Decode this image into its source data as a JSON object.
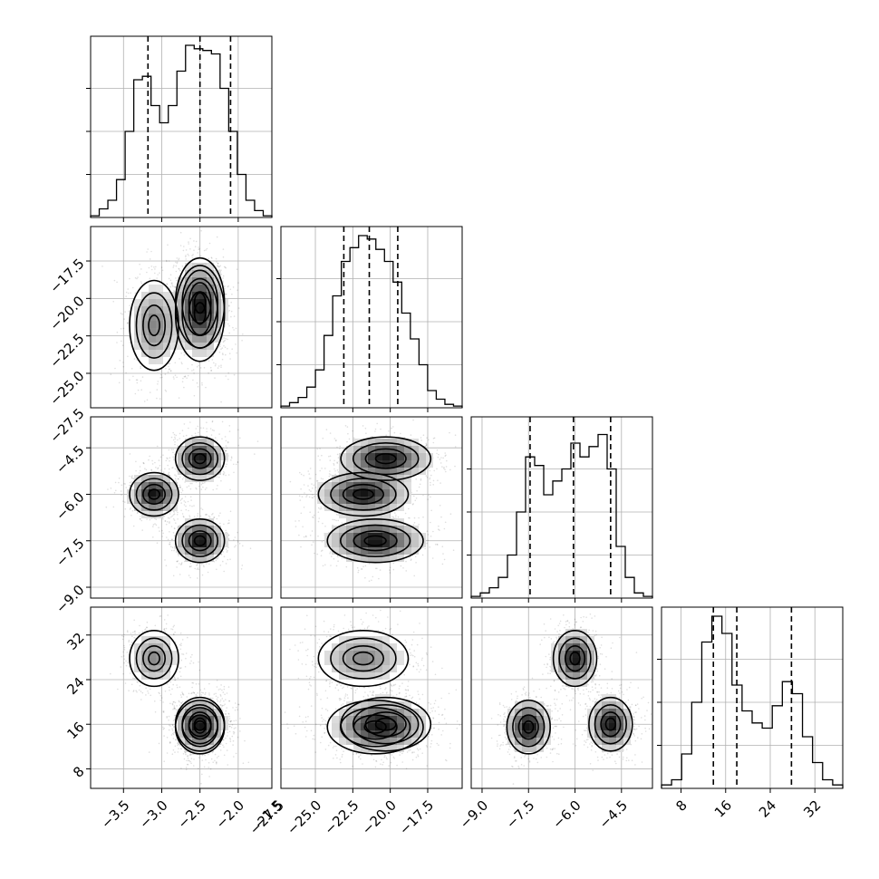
{
  "chart_data": {
    "type": "corner",
    "grid": true,
    "parameters": [
      {
        "ticks": [
          -3.5,
          -3.0,
          -2.5,
          -2.0,
          -1.5
        ],
        "range": [
          -3.93,
          -1.56
        ]
      },
      {
        "ticks": [
          -27.5,
          -25.0,
          -22.5,
          -20.0,
          -17.5
        ],
        "range": [
          -27.3,
          -15.2
        ]
      },
      {
        "ticks": [
          -9.0,
          -7.5,
          -6.0,
          -4.5
        ],
        "range": [
          -9.35,
          -3.5
        ]
      },
      {
        "ticks": [
          8,
          16,
          24,
          32
        ],
        "range": [
          4.5,
          37.0
        ]
      }
    ],
    "tick_labels": {
      "p0": [
        "−3.5",
        "−3.0",
        "−2.5",
        "−2.0",
        "−1.5"
      ],
      "p1": [
        "−27.5",
        "−25.0",
        "−22.5",
        "−20.0",
        "−17.5"
      ],
      "p2": [
        "−9.0",
        "−7.5",
        "−6.0",
        "−4.5"
      ],
      "p3": [
        "8",
        "16",
        "24",
        "32"
      ]
    },
    "quantiles": [
      [
        -3.18,
        -2.5,
        -2.1
      ],
      [
        -23.1,
        -21.4,
        -19.5
      ],
      [
        -7.45,
        -6.05,
        -4.85
      ],
      [
        13.8,
        18.0,
        27.8
      ]
    ],
    "histograms": [
      {
        "bin_start": -3.93,
        "bin_end": -1.56,
        "counts": [
          0.01,
          0.05,
          0.1,
          0.22,
          0.5,
          0.8,
          0.82,
          0.65,
          0.55,
          0.65,
          0.85,
          1.0,
          0.98,
          0.97,
          0.95,
          0.75,
          0.5,
          0.25,
          0.1,
          0.04,
          0.01
        ]
      },
      {
        "bin_start": -27.3,
        "bin_end": -15.2,
        "counts": [
          0.01,
          0.03,
          0.06,
          0.12,
          0.22,
          0.42,
          0.65,
          0.85,
          0.93,
          1.0,
          0.98,
          0.92,
          0.85,
          0.73,
          0.55,
          0.4,
          0.25,
          0.1,
          0.05,
          0.02,
          0.01
        ]
      },
      {
        "bin_start": -9.35,
        "bin_end": -3.5,
        "counts": [
          0.01,
          0.03,
          0.06,
          0.12,
          0.25,
          0.5,
          0.82,
          0.77,
          0.6,
          0.68,
          0.75,
          0.9,
          0.82,
          0.88,
          0.95,
          0.75,
          0.3,
          0.12,
          0.03,
          0.01
        ]
      },
      {
        "bin_start": 4.5,
        "bin_end": 37.0,
        "counts": [
          0.02,
          0.05,
          0.2,
          0.5,
          0.85,
          1.0,
          0.9,
          0.6,
          0.45,
          0.38,
          0.35,
          0.48,
          0.62,
          0.55,
          0.3,
          0.15,
          0.05,
          0.02
        ]
      }
    ],
    "modes": [
      {
        "p": [
          -3.1,
          -21.8,
          -6.0,
          27.8
        ],
        "s": [
          0.16,
          1.5,
          0.35,
          2.5
        ],
        "weight": 0.33
      },
      {
        "p": [
          -2.5,
          -20.3,
          -4.85,
          16.0
        ],
        "s": [
          0.16,
          1.5,
          0.35,
          2.4
        ],
        "weight": 0.33
      },
      {
        "p": [
          -2.5,
          -21.0,
          -7.5,
          15.5
        ],
        "s": [
          0.16,
          1.6,
          0.35,
          2.4
        ],
        "weight": 0.34
      }
    ]
  }
}
